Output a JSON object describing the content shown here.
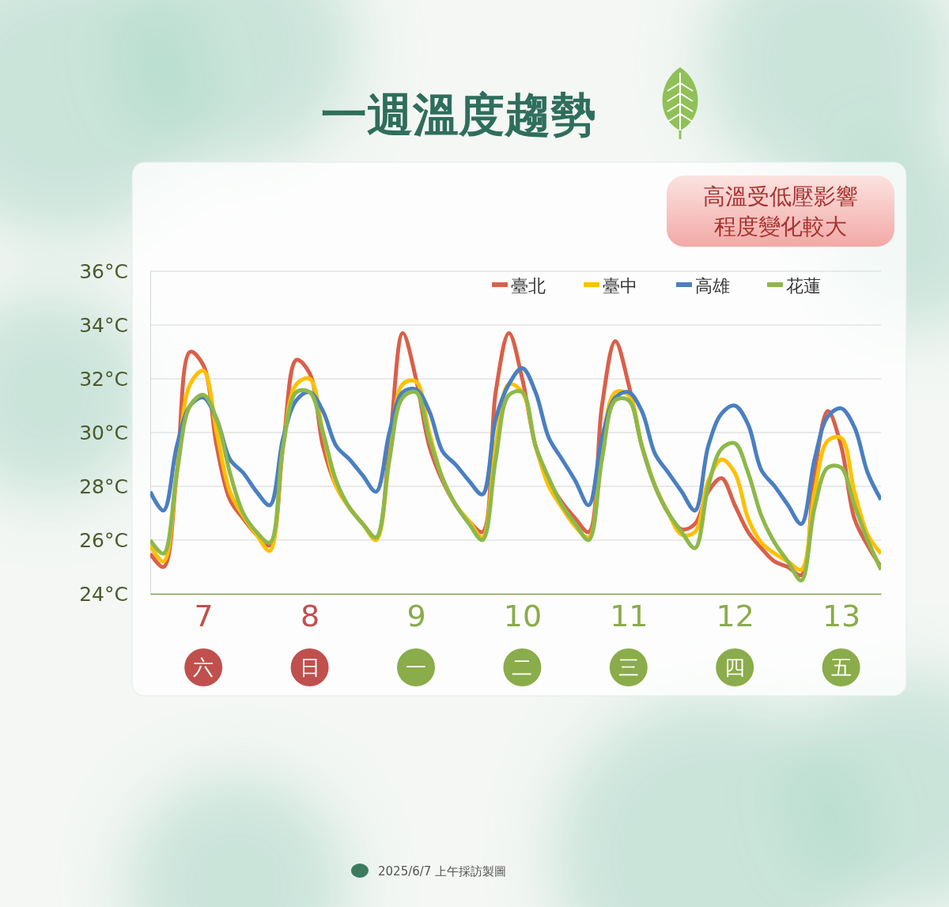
{
  "chart_data": {
    "type": "line",
    "title": "一週溫度趨勢",
    "annotation": [
      "高溫受低壓影響",
      "程度變化較大"
    ],
    "footer": "2025/6/7 上午採訪製圖",
    "categories": [
      null,
      null,
      null,
      null,
      "7",
      null,
      null,
      null,
      null,
      null,
      null,
      null,
      "8",
      null,
      null,
      null,
      null,
      null,
      null,
      null,
      "9",
      null,
      null,
      null,
      null,
      null,
      null,
      null,
      "10",
      null,
      null,
      null,
      null,
      null,
      null,
      null,
      "11",
      null,
      null,
      null,
      null,
      null,
      null,
      null,
      "12",
      null,
      null,
      null,
      null,
      null,
      null,
      null,
      "13",
      null,
      null,
      null
    ],
    "weekday_labels": [
      null,
      null,
      null,
      null,
      "六",
      null,
      null,
      null,
      null,
      null,
      null,
      null,
      "日",
      null,
      null,
      null,
      null,
      null,
      null,
      null,
      "一",
      null,
      null,
      null,
      null,
      null,
      null,
      null,
      "二",
      null,
      null,
      null,
      null,
      null,
      null,
      null,
      "三",
      null,
      null,
      null,
      null,
      null,
      null,
      null,
      "四",
      null,
      null,
      null,
      null,
      null,
      null,
      null,
      "五",
      null,
      null,
      null
    ],
    "weekday_colors": [
      null,
      null,
      null,
      null,
      "#c0504d",
      null,
      null,
      null,
      null,
      null,
      null,
      null,
      "#c0504d",
      null,
      null,
      null,
      null,
      null,
      null,
      null,
      "#8aac4a",
      null,
      null,
      null,
      null,
      null,
      null,
      null,
      "#8aac4a",
      null,
      null,
      null,
      null,
      null,
      null,
      null,
      "#8aac4a",
      null,
      null,
      null,
      null,
      null,
      null,
      null,
      "#8aac4a",
      null,
      null,
      null,
      null,
      null,
      null,
      null,
      "#8aac4a",
      null,
      null,
      null
    ],
    "series": [
      {
        "name": "臺北",
        "color": "#d9604a",
        "values": [
          25.5,
          25.0,
          28.5,
          33.0,
          32.5,
          29.5,
          27.5,
          26.8,
          26.2,
          25.8,
          29.5,
          32.7,
          32.2,
          29.5,
          28.0,
          27.2,
          26.6,
          26.1,
          29.5,
          33.7,
          32.0,
          29.5,
          28.2,
          27.3,
          26.7,
          26.3,
          31.5,
          33.7,
          32.0,
          29.5,
          28.2,
          27.4,
          26.8,
          26.3,
          31.0,
          33.4,
          31.8,
          29.5,
          28.0,
          27.0,
          26.4,
          26.6,
          27.8,
          28.3,
          27.3,
          26.3,
          25.7,
          25.2,
          25.0,
          24.7,
          28.5,
          30.8,
          29.5,
          26.8,
          25.8,
          25.0
        ]
      },
      {
        "name": "臺中",
        "color": "#ffc000",
        "values": [
          25.8,
          25.2,
          28.5,
          31.8,
          32.3,
          30.0,
          27.8,
          26.9,
          26.2,
          25.6,
          29.5,
          31.8,
          32.0,
          30.0,
          28.0,
          27.2,
          26.6,
          26.0,
          29.0,
          31.8,
          31.9,
          30.0,
          28.3,
          27.3,
          26.7,
          26.1,
          29.5,
          31.8,
          31.5,
          29.5,
          28.0,
          27.2,
          26.5,
          26.1,
          29.5,
          31.5,
          31.4,
          29.5,
          28.0,
          27.0,
          26.2,
          26.3,
          28.2,
          29.0,
          28.5,
          26.8,
          25.9,
          25.5,
          25.2,
          24.9,
          27.8,
          29.7,
          29.8,
          27.8,
          26.2,
          25.5
        ]
      },
      {
        "name": "高雄",
        "color": "#4a7fc1",
        "values": [
          27.8,
          27.1,
          29.5,
          31.0,
          31.3,
          30.5,
          29.0,
          28.5,
          27.8,
          27.3,
          29.8,
          31.2,
          31.5,
          30.8,
          29.5,
          29.0,
          28.4,
          27.8,
          30.0,
          31.5,
          31.6,
          30.8,
          29.3,
          28.8,
          28.2,
          27.7,
          30.5,
          31.8,
          32.4,
          31.5,
          29.8,
          29.0,
          28.2,
          27.3,
          29.8,
          31.3,
          31.5,
          30.8,
          29.2,
          28.5,
          27.8,
          27.1,
          29.5,
          30.7,
          31.0,
          30.3,
          28.6,
          28.0,
          27.3,
          26.6,
          29.0,
          30.6,
          30.9,
          30.2,
          28.5,
          27.5
        ]
      },
      {
        "name": "花蓮",
        "color": "#8db84a",
        "values": [
          26.0,
          25.5,
          28.5,
          31.0,
          31.4,
          30.5,
          28.5,
          27.0,
          26.3,
          25.9,
          29.5,
          31.5,
          31.5,
          30.0,
          28.2,
          27.2,
          26.6,
          26.1,
          29.0,
          31.3,
          31.5,
          29.8,
          28.3,
          27.3,
          26.6,
          26.0,
          29.0,
          31.4,
          31.5,
          29.5,
          28.3,
          27.3,
          26.6,
          26.0,
          29.0,
          31.2,
          31.2,
          29.5,
          28.0,
          27.0,
          26.3,
          25.7,
          28.0,
          29.4,
          29.6,
          28.5,
          26.9,
          25.9,
          25.2,
          24.5,
          27.2,
          28.7,
          28.7,
          27.3,
          26.0,
          24.9
        ]
      }
    ],
    "ylim": [
      24,
      36
    ],
    "yticks": [
      {
        "value": 24,
        "label": "24°C"
      },
      {
        "value": 26,
        "label": "26°C"
      },
      {
        "value": 28,
        "label": "28°C"
      },
      {
        "value": 30,
        "label": "30°C"
      },
      {
        "value": 32,
        "label": "32°C"
      },
      {
        "value": 34,
        "label": "34°C"
      },
      {
        "value": 36,
        "label": "36°C"
      }
    ],
    "grid": true,
    "legend": "top-right"
  }
}
